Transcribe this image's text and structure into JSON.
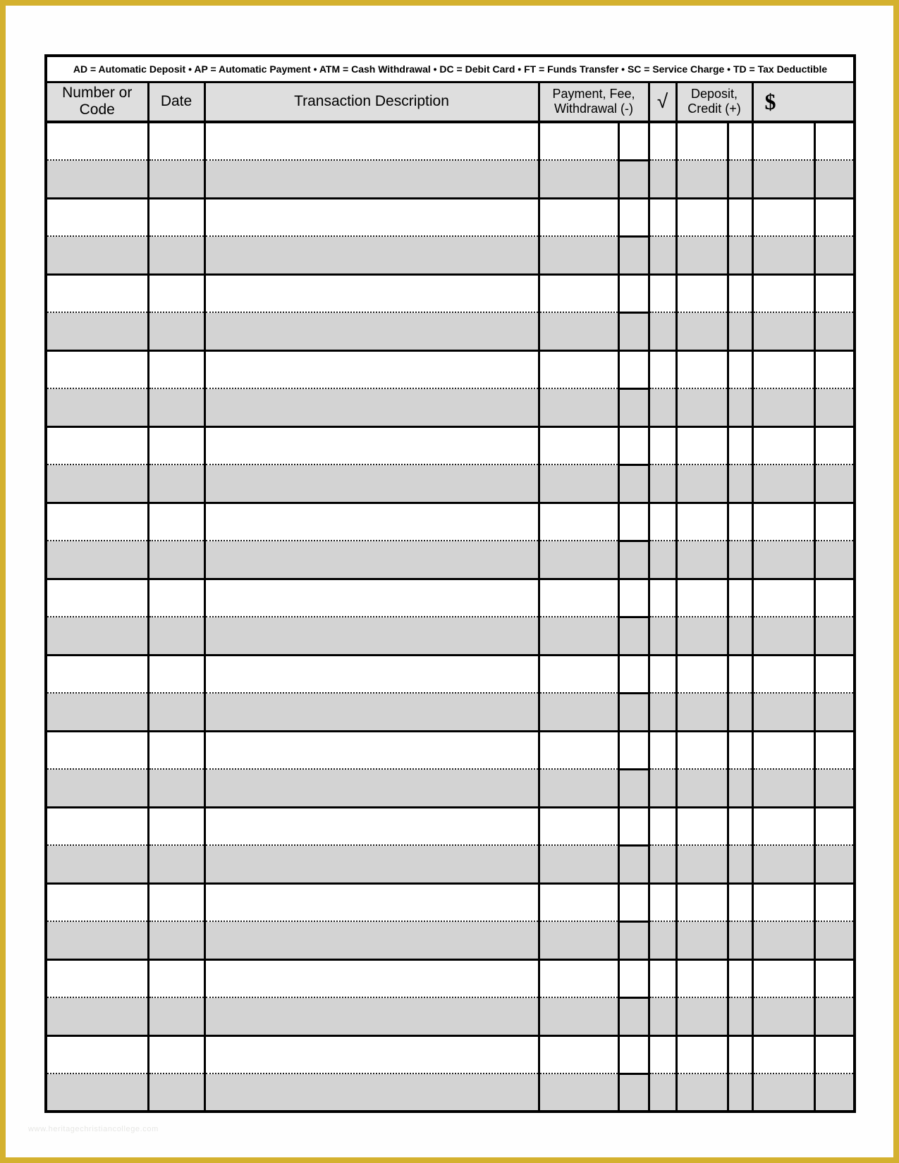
{
  "page": {
    "background_color": "#FFFFFF",
    "border_color": "#D4B12F"
  },
  "legend": {
    "separator": " • ",
    "items": [
      {
        "code": "AD",
        "meaning": "Automatic Deposit"
      },
      {
        "code": "AP",
        "meaning": "Automatic Payment"
      },
      {
        "code": "ATM",
        "meaning": "Cash Withdrawal"
      },
      {
        "code": "DC",
        "meaning": "Debit Card"
      },
      {
        "code": "FT",
        "meaning": "Funds Transfer"
      },
      {
        "code": "SC",
        "meaning": "Service Charge"
      },
      {
        "code": "TD",
        "meaning": "Tax Deductible"
      }
    ]
  },
  "table": {
    "headers": {
      "number_code": "Number or\nCode",
      "date": "Date",
      "description": "Transaction Description",
      "payment": "Payment, Fee,\nWithdrawal (-)",
      "check": "√",
      "deposit": "Deposit,\nCredit (+)",
      "balance": "$"
    },
    "row_count": 13,
    "row_fields": [
      "number_code",
      "date",
      "description",
      "payment",
      "payment_cents",
      "check",
      "deposit",
      "deposit_cents",
      "balance",
      "balance_cents"
    ]
  },
  "colors": {
    "row_shade": "#D3D3D3",
    "header_shade": "#DEDEDE",
    "grid_line": "#000000"
  },
  "watermark": {
    "text": "www.heritagechristiancollege.com"
  }
}
